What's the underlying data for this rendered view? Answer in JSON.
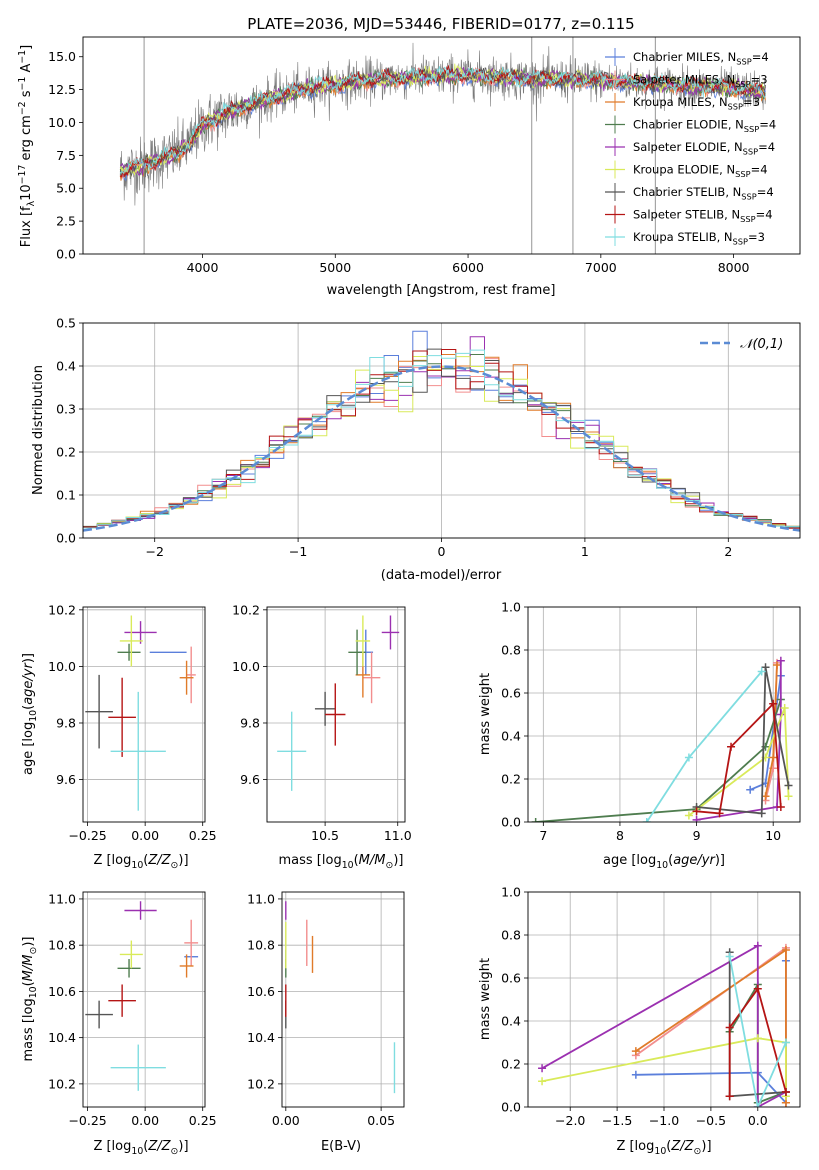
{
  "figure_title": "PLATE=2036, MJD=53446, FIBERID=0177, z=0.115",
  "colors": {
    "Chabrier MILES": "#5b7fdb",
    "Salpeter MILES": "#f28e8e",
    "Kroupa MILES": "#e07b2a",
    "Chabrier ELODIE": "#4f7d4f",
    "Salpeter ELODIE": "#9b30b0",
    "Kroupa ELODIE": "#d9ea5a",
    "Chabrier STELIB": "#555555",
    "Salpeter STELIB": "#b51515",
    "Kroupa STELIB": "#7fdde0",
    "data": "#7a7a7a",
    "gaussian": "#5b8bd4"
  },
  "chart_data": [
    {
      "id": "spectrum",
      "type": "line",
      "title": "PLATE=2036, MJD=53446, FIBERID=0177, z=0.115",
      "xlabel": "wavelength [Angstrom, rest frame]",
      "ylabel": "Flux [f_λ 10^-17 erg cm^-2 s^-1 A^-1]",
      "xlim": [
        3100,
        8500
      ],
      "ylim": [
        0,
        16.5
      ],
      "xticks": [
        4000,
        5000,
        6000,
        7000,
        8000
      ],
      "yticks": [
        0.0,
        2.5,
        5.0,
        7.5,
        10.0,
        12.5,
        15.0
      ],
      "legend_position": "top-right",
      "legend": [
        "Chabrier MILES, N_SSP=4",
        "Salpeter MILES, N_SSP=3",
        "Kroupa MILES, N_SSP=3",
        "Chabrier ELODIE, N_SSP=4",
        "Salpeter ELODIE, N_SSP=4",
        "Kroupa ELODIE, N_SSP=4",
        "Chabrier STELIB, N_SSP=4",
        "Salpeter STELIB, N_SSP=4",
        "Kroupa STELIB, N_SSP=3"
      ],
      "continuum": {
        "wavelength": [
          3400,
          3600,
          3800,
          3900,
          4000,
          4200,
          4500,
          4800,
          5200,
          5500,
          6000,
          6500,
          7000,
          7500,
          8000,
          8230
        ],
        "flux": [
          6.3,
          6.9,
          7.6,
          8.3,
          9.8,
          10.8,
          11.8,
          12.6,
          13.2,
          13.4,
          13.6,
          13.3,
          13.2,
          12.9,
          12.6,
          12.3
        ]
      },
      "vertical_lines": [
        3560,
        6480,
        6790,
        7410
      ]
    },
    {
      "id": "residuals",
      "type": "histogram",
      "xlabel": "(data-model)/error",
      "ylabel": "Normed distribution",
      "xlim": [
        -2.5,
        2.5
      ],
      "ylim": [
        0,
        0.5
      ],
      "xticks": [
        -2,
        -1,
        0,
        1,
        2
      ],
      "yticks": [
        0.0,
        0.1,
        0.2,
        0.3,
        0.4,
        0.5
      ],
      "legend": [
        "𝒩(0,1)"
      ],
      "legend_position": "top-right",
      "bin_width": 0.1
    },
    {
      "id": "age-vs-Z",
      "type": "errorbar",
      "xlabel": "Z [log10(Z/Z☉)]",
      "ylabel": "age [log10(age/yr)]",
      "xlim": [
        -0.27,
        0.26
      ],
      "ylim": [
        9.45,
        10.21
      ],
      "xticks": [
        -0.25,
        0.0,
        0.25
      ],
      "yticks": [
        9.6,
        9.8,
        10.0,
        10.2
      ],
      "points": [
        {
          "model": "Chabrier MILES",
          "x": 0.1,
          "xerr": 0.08,
          "y": 10.05,
          "yerr": 0.0
        },
        {
          "model": "Salpeter MILES",
          "x": 0.2,
          "xerr": 0.02,
          "y": 9.97,
          "yerr": 0.1
        },
        {
          "model": "Kroupa MILES",
          "x": 0.18,
          "xerr": 0.03,
          "y": 9.96,
          "yerr": 0.06
        },
        {
          "model": "Chabrier ELODIE",
          "x": -0.07,
          "xerr": 0.05,
          "y": 10.05,
          "yerr": 0.03
        },
        {
          "model": "Salpeter ELODIE",
          "x": -0.02,
          "xerr": 0.07,
          "y": 10.12,
          "yerr": 0.04
        },
        {
          "model": "Kroupa ELODIE",
          "x": -0.06,
          "xerr": 0.05,
          "y": 10.09,
          "yerr": 0.09
        },
        {
          "model": "Chabrier STELIB",
          "x": -0.2,
          "xerr": 0.06,
          "y": 9.84,
          "yerr": 0.13
        },
        {
          "model": "Salpeter STELIB",
          "x": -0.1,
          "xerr": 0.06,
          "y": 9.82,
          "yerr": 0.14
        },
        {
          "model": "Kroupa STELIB",
          "x": -0.03,
          "xerr": 0.12,
          "y": 9.7,
          "yerr": 0.21
        }
      ]
    },
    {
      "id": "age-vs-mass",
      "type": "errorbar",
      "xlabel": "mass [log10(M/M☉)]",
      "xlim": [
        10.1,
        11.05
      ],
      "ylim": [
        9.45,
        10.21
      ],
      "xticks": [
        10.5,
        11.0
      ],
      "yticks": [
        9.6,
        9.8,
        10.0,
        10.2
      ],
      "points": [
        {
          "model": "Chabrier MILES",
          "x": 10.78,
          "xerr": 0.05,
          "y": 10.05,
          "yerr": 0.08
        },
        {
          "model": "Salpeter MILES",
          "x": 10.82,
          "xerr": 0.06,
          "y": 9.96,
          "yerr": 0.09
        },
        {
          "model": "Kroupa MILES",
          "x": 10.76,
          "xerr": 0.05,
          "y": 9.97,
          "yerr": 0.08
        },
        {
          "model": "Chabrier ELODIE",
          "x": 10.72,
          "xerr": 0.06,
          "y": 10.05,
          "yerr": 0.08
        },
        {
          "model": "Salpeter ELODIE",
          "x": 10.95,
          "xerr": 0.06,
          "y": 10.12,
          "yerr": 0.06
        },
        {
          "model": "Kroupa ELODIE",
          "x": 10.76,
          "xerr": 0.05,
          "y": 10.09,
          "yerr": 0.09
        },
        {
          "model": "Chabrier STELIB",
          "x": 10.5,
          "xerr": 0.07,
          "y": 9.85,
          "yerr": 0.06
        },
        {
          "model": "Salpeter STELIB",
          "x": 10.57,
          "xerr": 0.07,
          "y": 9.83,
          "yerr": 0.11
        },
        {
          "model": "Kroupa STELIB",
          "x": 10.27,
          "xerr": 0.1,
          "y": 9.7,
          "yerr": 0.14
        }
      ]
    },
    {
      "id": "mass-weight-vs-age",
      "type": "line",
      "xlabel": "age [log10(age/yr)]",
      "ylabel": "mass weight",
      "xlim": [
        6.8,
        10.35
      ],
      "ylim": [
        0,
        1
      ],
      "xticks": [
        7,
        8,
        9,
        10
      ],
      "yticks": [
        0.0,
        0.2,
        0.4,
        0.6,
        0.8,
        1.0
      ],
      "series": [
        {
          "model": "Chabrier MILES",
          "x": [
            9.7,
            9.9,
            10.1
          ],
          "y": [
            0.15,
            0.18,
            0.68
          ]
        },
        {
          "model": "Salpeter MILES",
          "x": [
            9.9,
            10.0,
            10.05
          ],
          "y": [
            0.1,
            0.25,
            0.74
          ]
        },
        {
          "model": "Kroupa MILES",
          "x": [
            9.9,
            10.0,
            10.05
          ],
          "y": [
            0.12,
            0.3,
            0.73
          ]
        },
        {
          "model": "Chabrier ELODIE",
          "x": [
            6.9,
            9.0,
            9.9,
            10.1
          ],
          "y": [
            0.0,
            0.06,
            0.35,
            0.57
          ]
        },
        {
          "model": "Salpeter ELODIE",
          "x": [
            9.0,
            10.05,
            10.1,
            10.1
          ],
          "y": [
            0.01,
            0.07,
            0.5,
            0.75
          ]
        },
        {
          "model": "Kroupa ELODIE",
          "x": [
            8.9,
            9.9,
            10.15,
            10.2
          ],
          "y": [
            0.03,
            0.3,
            0.53,
            0.12
          ]
        },
        {
          "model": "Chabrier STELIB",
          "x": [
            9.0,
            9.85,
            9.9,
            10.2
          ],
          "y": [
            0.07,
            0.04,
            0.72,
            0.17
          ]
        },
        {
          "model": "Salpeter STELIB",
          "x": [
            9.0,
            9.3,
            9.45,
            10.0,
            10.1
          ],
          "y": [
            0.05,
            0.04,
            0.35,
            0.55,
            0.07
          ]
        },
        {
          "model": "Kroupa STELIB",
          "x": [
            8.35,
            8.9,
            9.85
          ],
          "y": [
            0.0,
            0.3,
            0.7
          ]
        }
      ]
    },
    {
      "id": "mass-vs-Z",
      "type": "errorbar",
      "xlabel": "Z [log10(Z/Z☉)]",
      "ylabel": "mass [log10(M/M☉)]",
      "xlim": [
        -0.27,
        0.26
      ],
      "ylim": [
        10.1,
        11.03
      ],
      "xticks": [
        -0.25,
        0.0,
        0.25
      ],
      "yticks": [
        10.2,
        10.4,
        10.6,
        10.8,
        11.0
      ],
      "points": [
        {
          "model": "Chabrier MILES",
          "x": 0.2,
          "xerr": 0.03,
          "y": 10.75,
          "yerr": 0.0
        },
        {
          "model": "Salpeter MILES",
          "x": 0.2,
          "xerr": 0.03,
          "y": 10.81,
          "yerr": 0.1
        },
        {
          "model": "Kroupa MILES",
          "x": 0.18,
          "xerr": 0.03,
          "y": 10.71,
          "yerr": 0.05
        },
        {
          "model": "Chabrier ELODIE",
          "x": -0.07,
          "xerr": 0.05,
          "y": 10.7,
          "yerr": 0.04
        },
        {
          "model": "Salpeter ELODIE",
          "x": -0.02,
          "xerr": 0.07,
          "y": 10.95,
          "yerr": 0.04
        },
        {
          "model": "Kroupa ELODIE",
          "x": -0.06,
          "xerr": 0.05,
          "y": 10.76,
          "yerr": 0.06
        },
        {
          "model": "Chabrier STELIB",
          "x": -0.2,
          "xerr": 0.06,
          "y": 10.5,
          "yerr": 0.06
        },
        {
          "model": "Salpeter STELIB",
          "x": -0.1,
          "xerr": 0.06,
          "y": 10.56,
          "yerr": 0.07
        },
        {
          "model": "Kroupa STELIB",
          "x": -0.03,
          "xerr": 0.12,
          "y": 10.27,
          "yerr": 0.1
        }
      ]
    },
    {
      "id": "mass-vs-ebv",
      "type": "errorbar",
      "xlabel": "E(B-V)",
      "xlim": [
        -0.002,
        0.062
      ],
      "ylim": [
        10.1,
        11.03
      ],
      "xticks": [
        0.0,
        0.05
      ],
      "yticks": [
        10.2,
        10.4,
        10.6,
        10.8,
        11.0
      ],
      "points": [
        {
          "model": "Chabrier MILES",
          "x": 0.0,
          "xerr": 0.0,
          "y": 10.75,
          "yerr": 0.03
        },
        {
          "model": "Salpeter MILES",
          "x": 0.011,
          "xerr": 0.0,
          "y": 10.81,
          "yerr": 0.1
        },
        {
          "model": "Kroupa MILES",
          "x": 0.014,
          "xerr": 0.0,
          "y": 10.76,
          "yerr": 0.08
        },
        {
          "model": "Chabrier ELODIE",
          "x": 0.0,
          "xerr": 0.0,
          "y": 10.7,
          "yerr": 0.04
        },
        {
          "model": "Salpeter ELODIE",
          "x": 0.0,
          "xerr": 0.0,
          "y": 10.95,
          "yerr": 0.04
        },
        {
          "model": "Kroupa ELODIE",
          "x": 0.0,
          "xerr": 0.0,
          "y": 10.8,
          "yerr": 0.1
        },
        {
          "model": "Chabrier STELIB",
          "x": 0.0,
          "xerr": 0.0,
          "y": 10.5,
          "yerr": 0.06
        },
        {
          "model": "Salpeter STELIB",
          "x": 0.0,
          "xerr": 0.0,
          "y": 10.56,
          "yerr": 0.07
        },
        {
          "model": "Kroupa STELIB",
          "x": 0.057,
          "xerr": 0.0,
          "y": 10.27,
          "yerr": 0.11
        }
      ]
    },
    {
      "id": "mass-weight-vs-Z",
      "type": "line",
      "xlabel": "Z [log10(Z/Z☉)]",
      "ylabel": "mass weight",
      "xlim": [
        -2.45,
        0.45
      ],
      "ylim": [
        0,
        1
      ],
      "xticks": [
        -2.0,
        -1.5,
        -1.0,
        -0.5,
        0.0
      ],
      "yticks": [
        0.0,
        0.2,
        0.4,
        0.6,
        0.8,
        1.0
      ],
      "series": [
        {
          "model": "Chabrier MILES",
          "x": [
            -1.3,
            0.0,
            0.3,
            0.3
          ],
          "y": [
            0.15,
            0.16,
            0.02,
            0.68
          ]
        },
        {
          "model": "Salpeter MILES",
          "x": [
            -1.3,
            0.3,
            0.3
          ],
          "y": [
            0.24,
            0.74,
            0.02
          ]
        },
        {
          "model": "Kroupa MILES",
          "x": [
            -1.3,
            0.3,
            0.3
          ],
          "y": [
            0.26,
            0.73,
            0.02
          ]
        },
        {
          "model": "Chabrier ELODIE",
          "x": [
            -0.3,
            0.0,
            0.0,
            0.3
          ],
          "y": [
            0.35,
            0.57,
            0.02,
            0.07
          ]
        },
        {
          "model": "Salpeter ELODIE",
          "x": [
            -2.3,
            0.0,
            0.0,
            0.3
          ],
          "y": [
            0.18,
            0.75,
            0.0,
            0.07
          ]
        },
        {
          "model": "Kroupa ELODIE",
          "x": [
            -2.3,
            0.0,
            0.3,
            0.3
          ],
          "y": [
            0.12,
            0.32,
            0.3,
            0.05
          ]
        },
        {
          "model": "Chabrier STELIB",
          "x": [
            -0.3,
            -0.3,
            0.3
          ],
          "y": [
            0.72,
            0.05,
            0.07
          ]
        },
        {
          "model": "Salpeter STELIB",
          "x": [
            -0.3,
            -0.3,
            0.0,
            0.3
          ],
          "y": [
            0.05,
            0.37,
            0.55,
            0.07
          ]
        },
        {
          "model": "Kroupa STELIB",
          "x": [
            -0.3,
            0.0,
            0.3
          ],
          "y": [
            0.7,
            0.0,
            0.3
          ]
        }
      ]
    }
  ]
}
